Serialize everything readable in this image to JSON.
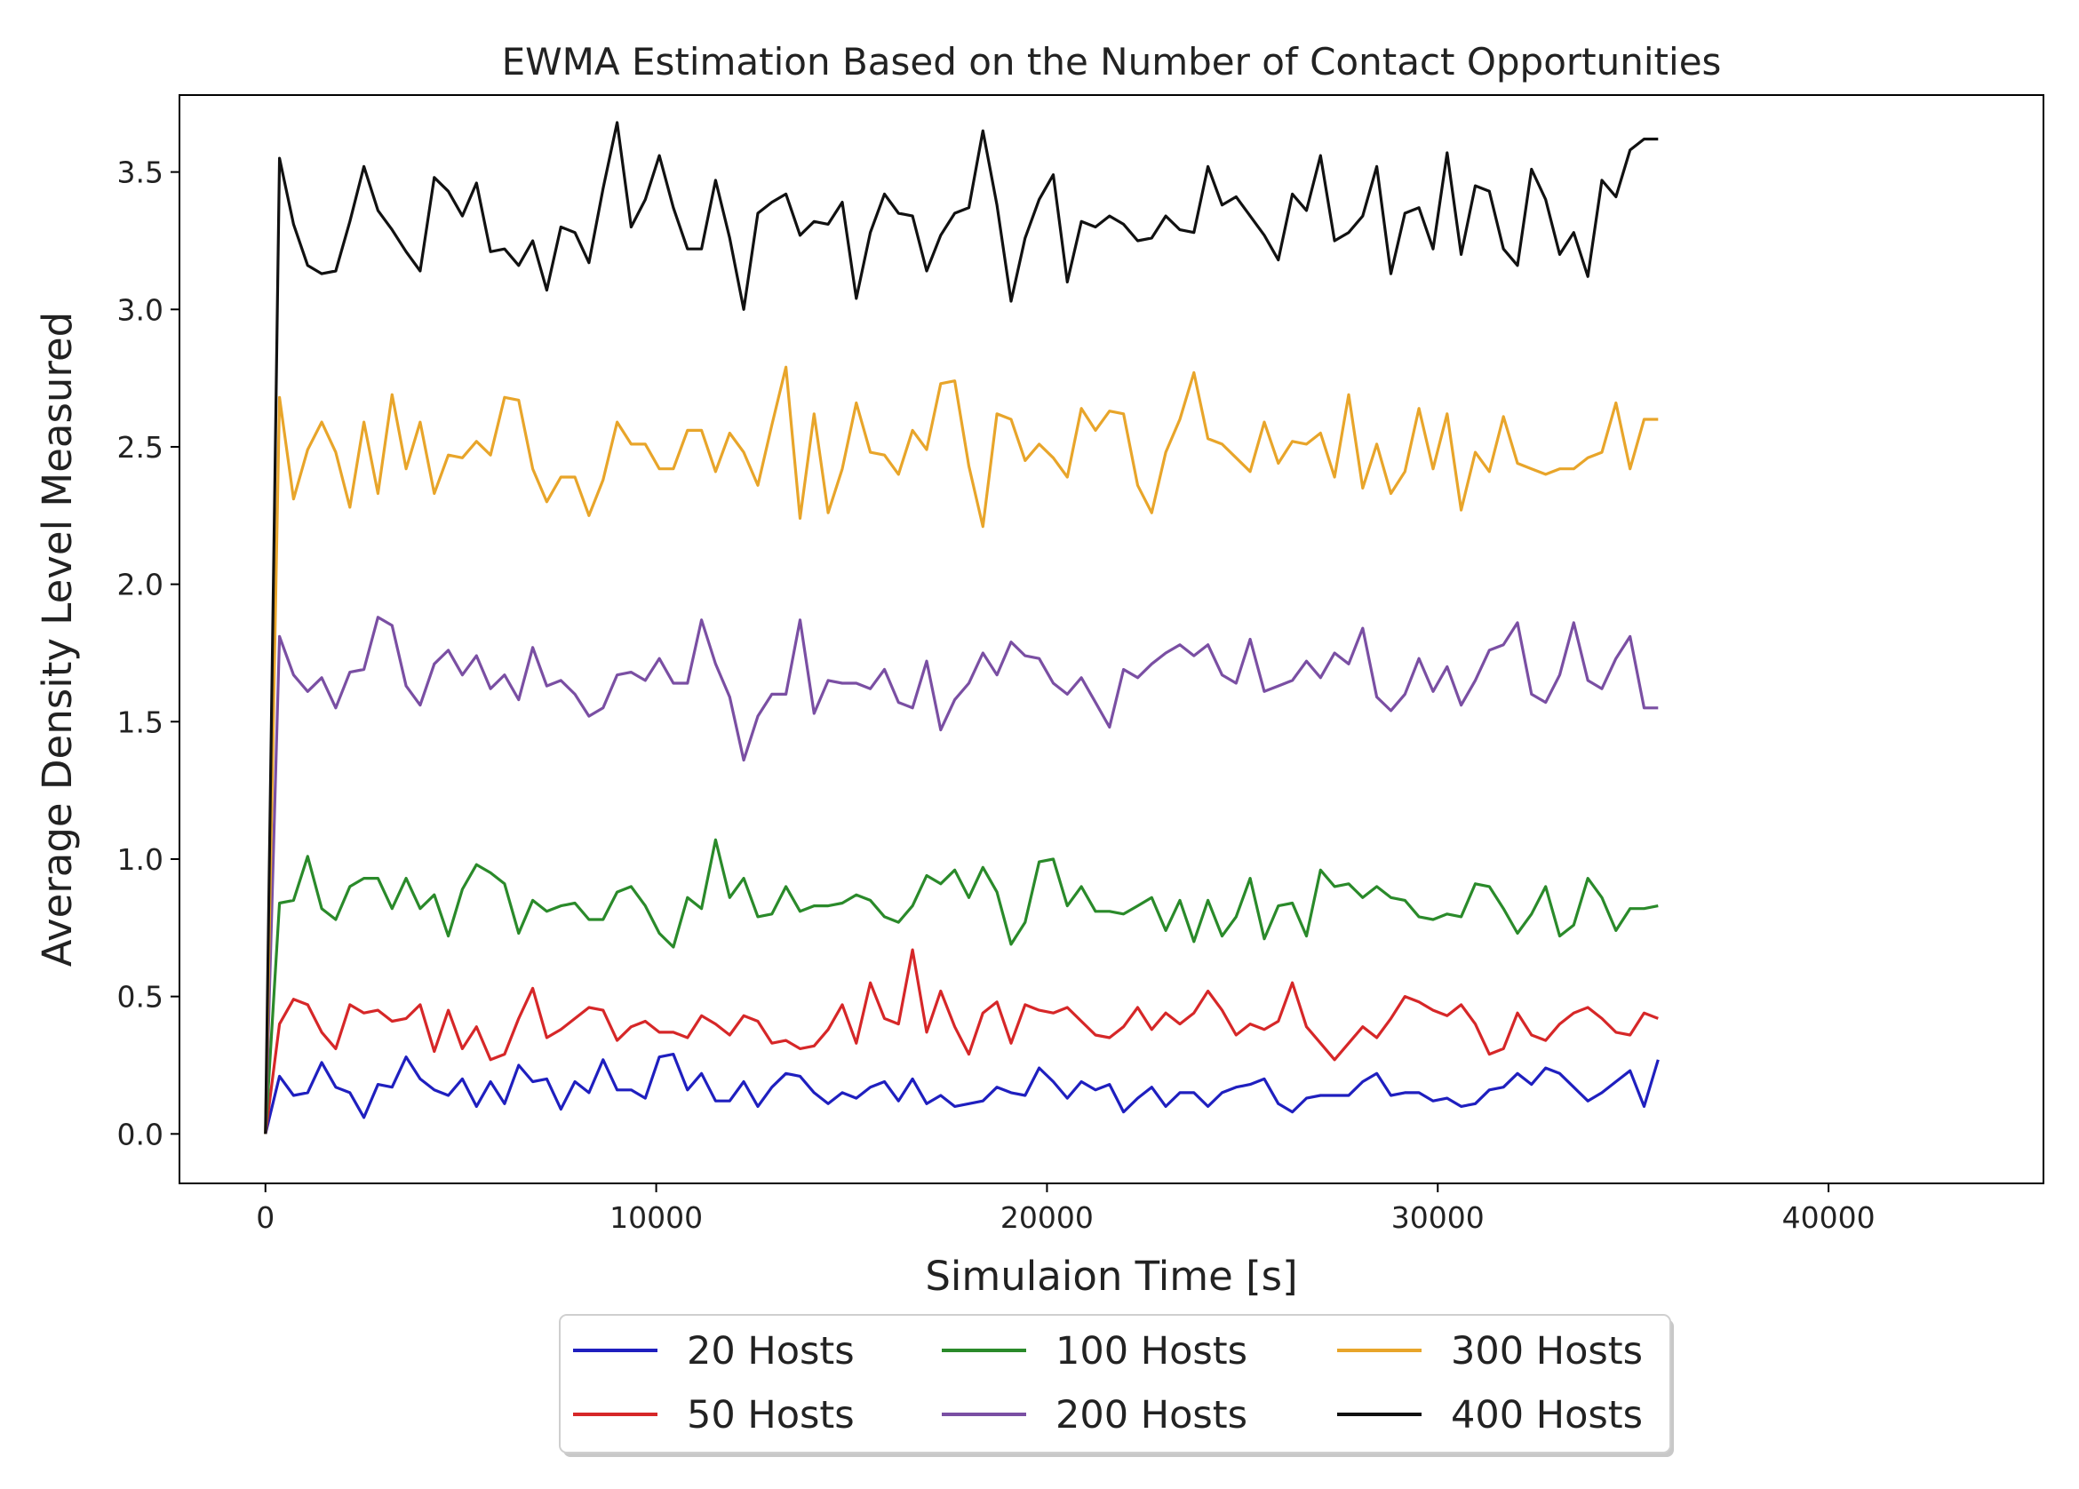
{
  "chart_data": {
    "type": "line",
    "title": "EWMA Estimation Based on the Number of Contact Opportunities",
    "xlabel": "Simulaion Time [s]",
    "ylabel": "Average Density Level Measured",
    "xlim": [
      -2200,
      45500
    ],
    "ylim": [
      -0.18,
      3.78
    ],
    "xticks": [
      0,
      10000,
      20000,
      30000,
      40000
    ],
    "xtick_labels": [
      "0",
      "10000",
      "20000",
      "30000",
      "40000"
    ],
    "yticks": [
      0.0,
      0.5,
      1.0,
      1.5,
      2.0,
      2.5,
      3.0,
      3.5
    ],
    "ytick_labels": [
      "0.0",
      "0.5",
      "1.0",
      "1.5",
      "2.0",
      "2.5",
      "3.0",
      "3.5"
    ],
    "grid": false,
    "legend_position": "bottom-center",
    "legend_columns": 3,
    "x_step": 360,
    "series": [
      {
        "name": "20 Hosts",
        "color": "#1f1fbf",
        "values": [
          0.0,
          0.21,
          0.14,
          0.15,
          0.26,
          0.17,
          0.15,
          0.06,
          0.18,
          0.17,
          0.28,
          0.2,
          0.16,
          0.14,
          0.2,
          0.1,
          0.19,
          0.11,
          0.25,
          0.19,
          0.2,
          0.09,
          0.19,
          0.15,
          0.27,
          0.16,
          0.16,
          0.13,
          0.28,
          0.29,
          0.16,
          0.22,
          0.12,
          0.12,
          0.19,
          0.1,
          0.17,
          0.22,
          0.21,
          0.15,
          0.11,
          0.15,
          0.13,
          0.17,
          0.19,
          0.12,
          0.2,
          0.11,
          0.14,
          0.1,
          0.11,
          0.12,
          0.17,
          0.15,
          0.14,
          0.24,
          0.19,
          0.13,
          0.19,
          0.16,
          0.18,
          0.08,
          0.13,
          0.17,
          0.1,
          0.15,
          0.15,
          0.1,
          0.15,
          0.17,
          0.18,
          0.2,
          0.11,
          0.08,
          0.13,
          0.14,
          0.14,
          0.14,
          0.19,
          0.22,
          0.14,
          0.15,
          0.15,
          0.12,
          0.13,
          0.1,
          0.11,
          0.16,
          0.17,
          0.22,
          0.18,
          0.24,
          0.22,
          0.17,
          0.12,
          0.15,
          0.19,
          0.23,
          0.1,
          0.27
        ]
      },
      {
        "name": "50 Hosts",
        "color": "#d62728",
        "values": [
          0.0,
          0.4,
          0.49,
          0.47,
          0.37,
          0.31,
          0.47,
          0.44,
          0.45,
          0.41,
          0.42,
          0.47,
          0.3,
          0.45,
          0.31,
          0.39,
          0.27,
          0.29,
          0.42,
          0.53,
          0.35,
          0.38,
          0.42,
          0.46,
          0.45,
          0.34,
          0.39,
          0.41,
          0.37,
          0.37,
          0.35,
          0.43,
          0.4,
          0.36,
          0.43,
          0.41,
          0.33,
          0.34,
          0.31,
          0.32,
          0.38,
          0.47,
          0.33,
          0.55,
          0.42,
          0.4,
          0.67,
          0.37,
          0.52,
          0.39,
          0.29,
          0.44,
          0.48,
          0.33,
          0.47,
          0.45,
          0.44,
          0.46,
          0.41,
          0.36,
          0.35,
          0.39,
          0.46,
          0.38,
          0.44,
          0.4,
          0.44,
          0.52,
          0.45,
          0.36,
          0.4,
          0.38,
          0.41,
          0.55,
          0.39,
          0.33,
          0.27,
          0.33,
          0.39,
          0.35,
          0.42,
          0.5,
          0.48,
          0.45,
          0.43,
          0.47,
          0.4,
          0.29,
          0.31,
          0.44,
          0.36,
          0.34,
          0.4,
          0.44,
          0.46,
          0.42,
          0.37,
          0.36,
          0.44,
          0.42
        ]
      },
      {
        "name": "100 Hosts",
        "color": "#2a8a2a",
        "values": [
          0.0,
          0.84,
          0.85,
          1.01,
          0.82,
          0.78,
          0.9,
          0.93,
          0.93,
          0.82,
          0.93,
          0.82,
          0.87,
          0.72,
          0.89,
          0.98,
          0.95,
          0.91,
          0.73,
          0.85,
          0.81,
          0.83,
          0.84,
          0.78,
          0.78,
          0.88,
          0.9,
          0.83,
          0.73,
          0.68,
          0.86,
          0.82,
          1.07,
          0.86,
          0.93,
          0.79,
          0.8,
          0.9,
          0.81,
          0.83,
          0.83,
          0.84,
          0.87,
          0.85,
          0.79,
          0.77,
          0.83,
          0.94,
          0.91,
          0.96,
          0.86,
          0.97,
          0.88,
          0.69,
          0.77,
          0.99,
          1.0,
          0.83,
          0.9,
          0.81,
          0.81,
          0.8,
          0.83,
          0.86,
          0.74,
          0.85,
          0.7,
          0.85,
          0.72,
          0.79,
          0.93,
          0.71,
          0.83,
          0.84,
          0.72,
          0.96,
          0.9,
          0.91,
          0.86,
          0.9,
          0.86,
          0.85,
          0.79,
          0.78,
          0.8,
          0.79,
          0.91,
          0.9,
          0.82,
          0.73,
          0.8,
          0.9,
          0.72,
          0.76,
          0.93,
          0.86,
          0.74,
          0.82,
          0.82,
          0.83
        ]
      },
      {
        "name": "200 Hosts",
        "color": "#7a4fa3",
        "values": [
          0.0,
          1.81,
          1.67,
          1.61,
          1.66,
          1.55,
          1.68,
          1.69,
          1.88,
          1.85,
          1.63,
          1.56,
          1.71,
          1.76,
          1.67,
          1.74,
          1.62,
          1.67,
          1.58,
          1.77,
          1.63,
          1.65,
          1.6,
          1.52,
          1.55,
          1.67,
          1.68,
          1.65,
          1.73,
          1.64,
          1.64,
          1.87,
          1.71,
          1.59,
          1.36,
          1.52,
          1.6,
          1.6,
          1.87,
          1.53,
          1.65,
          1.64,
          1.64,
          1.62,
          1.69,
          1.57,
          1.55,
          1.72,
          1.47,
          1.58,
          1.64,
          1.75,
          1.67,
          1.79,
          1.74,
          1.73,
          1.64,
          1.6,
          1.66,
          1.57,
          1.48,
          1.69,
          1.66,
          1.71,
          1.75,
          1.78,
          1.74,
          1.78,
          1.67,
          1.64,
          1.8,
          1.61,
          1.63,
          1.65,
          1.72,
          1.66,
          1.75,
          1.71,
          1.84,
          1.59,
          1.54,
          1.6,
          1.73,
          1.61,
          1.7,
          1.56,
          1.65,
          1.76,
          1.78,
          1.86,
          1.6,
          1.57,
          1.67,
          1.86,
          1.65,
          1.62,
          1.73,
          1.81,
          1.55,
          1.55
        ]
      },
      {
        "name": "300 Hosts",
        "color": "#e8a52a",
        "values": [
          0.0,
          2.68,
          2.31,
          2.49,
          2.59,
          2.48,
          2.28,
          2.59,
          2.33,
          2.69,
          2.42,
          2.59,
          2.33,
          2.47,
          2.46,
          2.52,
          2.47,
          2.68,
          2.67,
          2.42,
          2.3,
          2.39,
          2.39,
          2.25,
          2.38,
          2.59,
          2.51,
          2.51,
          2.42,
          2.42,
          2.56,
          2.56,
          2.41,
          2.55,
          2.48,
          2.36,
          2.58,
          2.79,
          2.24,
          2.62,
          2.26,
          2.42,
          2.66,
          2.48,
          2.47,
          2.4,
          2.56,
          2.49,
          2.73,
          2.74,
          2.43,
          2.21,
          2.62,
          2.6,
          2.45,
          2.51,
          2.46,
          2.39,
          2.64,
          2.56,
          2.63,
          2.62,
          2.36,
          2.26,
          2.48,
          2.6,
          2.77,
          2.53,
          2.51,
          2.46,
          2.41,
          2.59,
          2.44,
          2.52,
          2.51,
          2.55,
          2.39,
          2.69,
          2.35,
          2.51,
          2.33,
          2.41,
          2.64,
          2.42,
          2.62,
          2.27,
          2.48,
          2.41,
          2.61,
          2.44,
          2.42,
          2.4,
          2.42,
          2.42,
          2.46,
          2.48,
          2.66,
          2.42,
          2.6,
          2.6
        ]
      },
      {
        "name": "400 Hosts",
        "color": "#111111",
        "values": [
          0.0,
          3.55,
          3.31,
          3.16,
          3.13,
          3.14,
          3.32,
          3.52,
          3.36,
          3.29,
          3.21,
          3.14,
          3.48,
          3.43,
          3.34,
          3.46,
          3.21,
          3.22,
          3.16,
          3.25,
          3.07,
          3.3,
          3.28,
          3.17,
          3.44,
          3.68,
          3.3,
          3.4,
          3.56,
          3.37,
          3.22,
          3.22,
          3.47,
          3.26,
          3.0,
          3.35,
          3.39,
          3.42,
          3.27,
          3.32,
          3.31,
          3.39,
          3.04,
          3.28,
          3.42,
          3.35,
          3.34,
          3.14,
          3.27,
          3.35,
          3.37,
          3.65,
          3.38,
          3.03,
          3.26,
          3.4,
          3.49,
          3.1,
          3.32,
          3.3,
          3.34,
          3.31,
          3.25,
          3.26,
          3.34,
          3.29,
          3.28,
          3.52,
          3.38,
          3.41,
          3.34,
          3.27,
          3.18,
          3.42,
          3.36,
          3.56,
          3.25,
          3.28,
          3.34,
          3.52,
          3.13,
          3.35,
          3.37,
          3.22,
          3.57,
          3.2,
          3.45,
          3.43,
          3.22,
          3.16,
          3.51,
          3.4,
          3.2,
          3.28,
          3.12,
          3.47,
          3.41,
          3.58,
          3.62,
          3.62
        ]
      }
    ]
  }
}
